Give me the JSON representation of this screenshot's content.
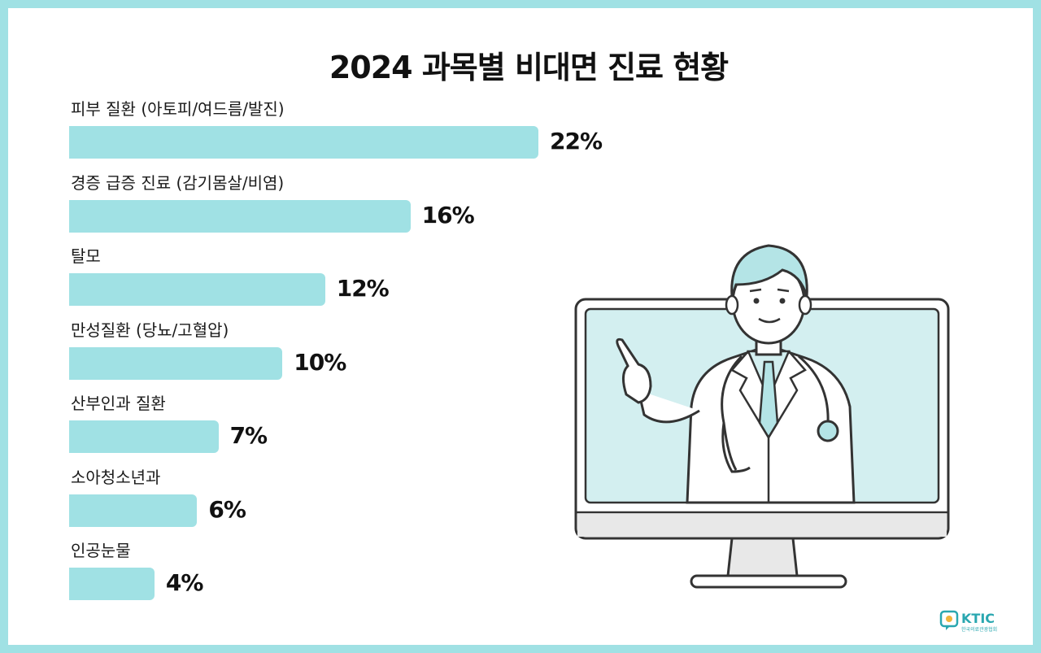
{
  "chart_data": {
    "type": "bar",
    "orientation": "horizontal",
    "title": "2024 과목별 비대면 진료 현황",
    "categories": [
      "피부 질환 (아토피/여드름/발진)",
      "경증 급증 진료 (감기몸살/비염)",
      "탈모",
      "만성질환 (당뇨/고혈압)",
      "산부인과 질환",
      "소아청소년과",
      "인공눈물"
    ],
    "values": [
      22,
      16,
      12,
      10,
      7,
      6,
      4
    ],
    "value_labels": [
      "22%",
      "16%",
      "12%",
      "10%",
      "7%",
      "6%",
      "4%"
    ],
    "unit": "%",
    "xlim": [
      0,
      22
    ],
    "grid": false,
    "legend": "none",
    "bar_color": "#a0e1e4"
  },
  "branding": {
    "logo_text": "KTIC",
    "logo_subtext": "한국의료관광협회",
    "logo_color": "#2aa7b0"
  },
  "illustration": {
    "subject": "doctor-in-monitor-icon",
    "outline_color": "#333333",
    "screen_color": "#d3eff0"
  }
}
